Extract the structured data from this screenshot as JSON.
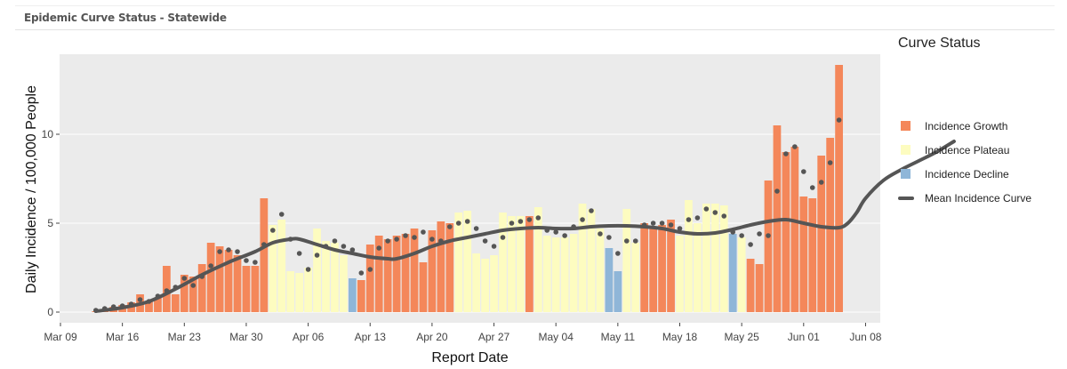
{
  "panel": {
    "title": "Epidemic Curve Status - Statewide"
  },
  "colors": {
    "growth": "#f4875a",
    "plateau": "#fdfcc0",
    "decline": "#8fb6d8",
    "mean_line": "#555555",
    "points": "#555555",
    "panel_bg": "#ebebeb"
  },
  "legend": {
    "title": "Curve Status",
    "items": [
      {
        "key": "growth",
        "label": "Incidence Growth"
      },
      {
        "key": "plateau",
        "label": "Incidence Plateau"
      },
      {
        "key": "decline",
        "label": "Incidence Decline"
      },
      {
        "key": "mean",
        "label": "Mean Incidence Curve"
      }
    ]
  },
  "chart_data": {
    "type": "bar",
    "title": "Epidemic Curve Status - Statewide",
    "xlabel": "Report Date",
    "ylabel": "Daily Incidence / 100,000 People",
    "ylim": [
      -0.6,
      14.5
    ],
    "y_ticks": [
      0,
      5,
      10
    ],
    "x_ticks": [
      "Mar 09",
      "Mar 16",
      "Mar 23",
      "Mar 30",
      "Apr 06",
      "Apr 13",
      "Apr 20",
      "Apr 27",
      "May 04",
      "May 11",
      "May 18",
      "May 25",
      "Jun 01",
      "Jun 08"
    ],
    "x_start": "Mar 09",
    "first_day_offset": 4,
    "series": [
      {
        "name": "Daily Incidence",
        "values": [
          0.05,
          0.15,
          0.3,
          0.4,
          0.55,
          1.0,
          0.6,
          0.8,
          2.6,
          1.0,
          2.1,
          2.0,
          2.7,
          3.9,
          3.7,
          3.5,
          3.2,
          2.6,
          2.6,
          6.4,
          4.9,
          5.2,
          2.3,
          2.2,
          2.5,
          4.7,
          4.0,
          3.9,
          3.2,
          1.9,
          1.8,
          3.8,
          4.3,
          4.1,
          4.3,
          4.4,
          4.7,
          2.8,
          4.6,
          5.1,
          5.0,
          5.6,
          5.7,
          3.3,
          3.0,
          3.2,
          5.6,
          5.4,
          5.4,
          5.4,
          5.9,
          4.3,
          4.2,
          4.2,
          4.4,
          6.1,
          5.8,
          4.7,
          3.6,
          2.3,
          5.8,
          3.9,
          5.0,
          4.7,
          4.9,
          5.2,
          4.3,
          6.3,
          5.0,
          6.1,
          6.1,
          6.0,
          4.4,
          4.2,
          3.0,
          2.7,
          7.4,
          10.5,
          9.0,
          9.3,
          6.5,
          6.4,
          8.8,
          9.8,
          13.9
        ]
      },
      {
        "name": "Observed Points",
        "values": [
          0.1,
          0.2,
          0.3,
          0.35,
          0.45,
          0.7,
          0.6,
          0.9,
          1.2,
          1.4,
          1.9,
          1.5,
          2.0,
          2.6,
          3.4,
          3.5,
          3.4,
          2.9,
          2.8,
          3.8,
          4.6,
          5.5,
          4.1,
          3.3,
          2.4,
          3.2,
          3.7,
          4.0,
          3.7,
          3.5,
          2.2,
          2.4,
          3.6,
          4.0,
          4.1,
          4.3,
          4.2,
          4.5,
          4.1,
          4.0,
          4.8,
          5.0,
          5.1,
          4.7,
          4.0,
          3.7,
          4.2,
          5.0,
          5.1,
          5.2,
          5.3,
          4.6,
          4.5,
          4.3,
          4.8,
          5.2,
          5.7,
          4.4,
          4.2,
          3.3,
          4.0,
          4.0,
          4.9,
          5.0,
          5.0,
          4.9,
          4.7,
          5.2,
          5.3,
          5.8,
          5.6,
          5.4,
          4.5,
          4.3,
          3.8,
          4.4,
          4.3,
          6.8,
          8.9,
          9.3,
          7.9,
          7.0,
          7.3,
          8.4,
          10.8
        ]
      }
    ],
    "status": [
      "g",
      "g",
      "g",
      "g",
      "g",
      "g",
      "g",
      "g",
      "g",
      "g",
      "g",
      "g",
      "g",
      "g",
      "g",
      "g",
      "g",
      "g",
      "g",
      "g",
      "p",
      "p",
      "p",
      "p",
      "p",
      "p",
      "p",
      "p",
      "p",
      "d",
      "g",
      "g",
      "g",
      "g",
      "g",
      "g",
      "g",
      "g",
      "g",
      "g",
      "g",
      "p",
      "p",
      "p",
      "p",
      "p",
      "p",
      "p",
      "p",
      "g",
      "p",
      "p",
      "p",
      "p",
      "p",
      "p",
      "p",
      "p",
      "d",
      "d",
      "p",
      "p",
      "g",
      "g",
      "g",
      "g",
      "p",
      "p",
      "p",
      "p",
      "p",
      "p",
      "d",
      "p",
      "g",
      "g",
      "g",
      "g",
      "g",
      "g",
      "g",
      "g",
      "g",
      "g",
      "g"
    ],
    "mean_curve": [
      [
        4,
        0.05
      ],
      [
        7,
        0.25
      ],
      [
        10,
        0.6
      ],
      [
        13,
        1.3
      ],
      [
        16,
        2.1
      ],
      [
        19,
        2.8
      ],
      [
        22,
        3.4
      ],
      [
        24,
        3.9
      ],
      [
        26,
        4.1
      ],
      [
        27,
        4.1
      ],
      [
        29,
        3.8
      ],
      [
        31,
        3.5
      ],
      [
        33,
        3.3
      ],
      [
        35,
        3.1
      ],
      [
        37,
        3.0
      ],
      [
        38,
        3.0
      ],
      [
        40,
        3.3
      ],
      [
        42,
        3.7
      ],
      [
        44,
        4.0
      ],
      [
        46,
        4.2
      ],
      [
        48,
        4.4
      ],
      [
        50,
        4.6
      ],
      [
        52,
        4.7
      ],
      [
        54,
        4.75
      ],
      [
        56,
        4.7
      ],
      [
        58,
        4.7
      ],
      [
        60,
        4.8
      ],
      [
        62,
        4.85
      ],
      [
        64,
        4.85
      ],
      [
        66,
        4.8
      ],
      [
        68,
        4.7
      ],
      [
        70,
        4.5
      ],
      [
        72,
        4.4
      ],
      [
        74,
        4.45
      ],
      [
        76,
        4.65
      ],
      [
        78,
        4.9
      ],
      [
        80,
        5.1
      ],
      [
        82,
        5.2
      ],
      [
        84,
        5.0
      ],
      [
        86,
        4.8
      ],
      [
        88,
        4.75
      ],
      [
        89,
        5.0
      ],
      [
        90,
        5.6
      ],
      [
        91,
        6.4
      ],
      [
        93,
        7.4
      ],
      [
        95,
        8.0
      ],
      [
        97,
        8.5
      ],
      [
        99,
        9.0
      ],
      [
        101,
        9.6
      ]
    ]
  }
}
